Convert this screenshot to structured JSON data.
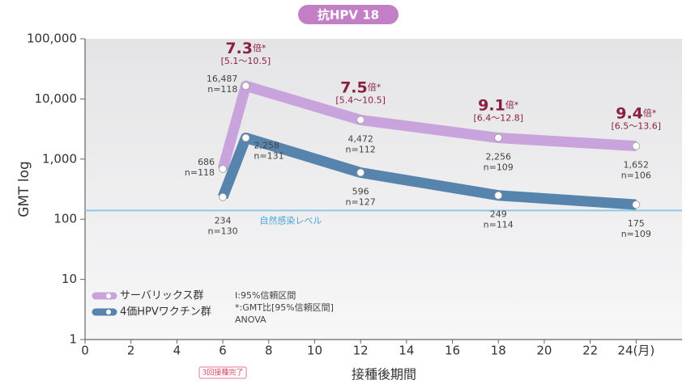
{
  "chart_data": {
    "type": "line",
    "title": "抗HPV 18",
    "y_label": "GMT log",
    "x_label": "接種後期間",
    "log_y": true,
    "xlim": [
      0,
      26
    ],
    "ylim": [
      1,
      100000
    ],
    "xticks": [
      0,
      2,
      4,
      6,
      8,
      10,
      12,
      14,
      16,
      18,
      20,
      22,
      {
        "value": 24,
        "label": "24(月)"
      }
    ],
    "yticks": [
      1,
      10,
      100,
      {
        "value": 1000,
        "label": "1,000"
      },
      {
        "value": 10000,
        "label": "10,000"
      },
      {
        "value": 100000,
        "label": "100,000"
      }
    ],
    "x": [
      6,
      7,
      12,
      18,
      24
    ],
    "series": [
      {
        "name": "サーバリックス群",
        "color": "#c9a3dc",
        "values": [
          686,
          16487,
          4472,
          2256,
          1652
        ],
        "value_labels": [
          "686",
          "16,487",
          "4,472",
          "2,256",
          "1,652"
        ],
        "n": [
          "n=118",
          "n=118",
          "n=112",
          "n=109",
          "n=106"
        ]
      },
      {
        "name": "4価HPVワクチン群",
        "color": "#5784ad",
        "values": [
          234,
          2258,
          596,
          249,
          175
        ],
        "value_labels": [
          "234",
          "2,258",
          "596",
          "249",
          "175"
        ],
        "n": [
          "n=130",
          "n=131",
          "n=127",
          "n=114",
          "n=109"
        ]
      }
    ],
    "annotations": [
      {
        "x": 7,
        "ratio": "7.3",
        "unit": "倍*",
        "ci": "[5.1〜10.5]"
      },
      {
        "x": 12,
        "ratio": "7.5",
        "unit": "倍*",
        "ci": "[5.4〜10.5]"
      },
      {
        "x": 18,
        "ratio": "9.1",
        "unit": "倍*",
        "ci": "[6.4〜12.8]"
      },
      {
        "x": 24,
        "ratio": "9.4",
        "unit": "倍*",
        "ci": "[6.5〜13.6]"
      }
    ],
    "reference_line": {
      "value": 140,
      "label": "自然感染レベル",
      "color": "#8ec8e8"
    },
    "notes": [
      "Ⅰ:95%信頼区間",
      "*:GMT比[95%信頼区間]",
      "ANOVA"
    ],
    "marker_note": {
      "x": 6,
      "label": "3回接種完了"
    }
  }
}
